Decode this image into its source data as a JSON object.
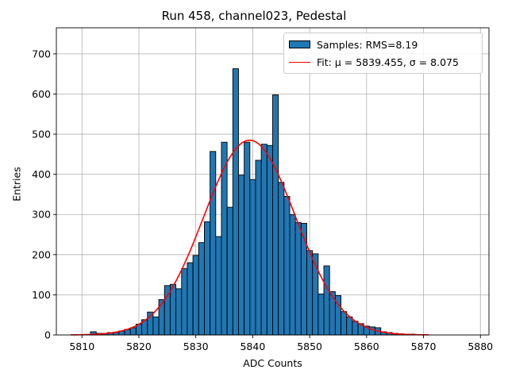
{
  "chart_data": {
    "type": "bar",
    "title": "Run 458, channel023, Pedestal",
    "xlabel": "ADC Counts",
    "ylabel": "Entries",
    "xlim": [
      5805.5,
      5881.5
    ],
    "ylim": [
      0,
      765
    ],
    "xticks": [
      5810,
      5820,
      5830,
      5840,
      5850,
      5860,
      5870,
      5880
    ],
    "yticks": [
      0,
      100,
      200,
      300,
      400,
      500,
      600,
      700
    ],
    "grid": true,
    "legend_position": "top-right",
    "colors": {
      "bars": "#1f77b4",
      "bar_edge": "#000000",
      "fit": "#ff0000"
    },
    "histogram": {
      "name": "Samples: RMS=8.19",
      "bins": [
        5812,
        5813,
        5814,
        5815,
        5816,
        5817,
        5818,
        5819,
        5820,
        5821,
        5822,
        5823,
        5824,
        5825,
        5826,
        5827,
        5828,
        5829,
        5830,
        5831,
        5832,
        5833,
        5834,
        5835,
        5836,
        5837,
        5838,
        5839,
        5840,
        5841,
        5842,
        5843,
        5844,
        5845,
        5846,
        5847,
        5848,
        5849,
        5850,
        5851,
        5852,
        5853,
        5854,
        5855,
        5856,
        5857,
        5858,
        5859,
        5860,
        5861,
        5862,
        5863,
        5864,
        5865,
        5866,
        5867,
        5868
      ],
      "counts": [
        8,
        4,
        4,
        6,
        7,
        10,
        14,
        18,
        27,
        38,
        57,
        45,
        88,
        123,
        126,
        115,
        165,
        180,
        198,
        230,
        282,
        457,
        245,
        480,
        318,
        663,
        398,
        480,
        387,
        435,
        475,
        472,
        598,
        380,
        345,
        300,
        280,
        278,
        210,
        202,
        102,
        172,
        108,
        98,
        58,
        45,
        34,
        28,
        22,
        20,
        18,
        8,
        6,
        4,
        3,
        2,
        2
      ]
    },
    "fit": {
      "name": "Fit: μ = 5839.455, σ = 8.075",
      "mu": 5839.455,
      "sigma": 8.075,
      "peak": 485,
      "x_range": [
        5808,
        5871
      ]
    }
  }
}
